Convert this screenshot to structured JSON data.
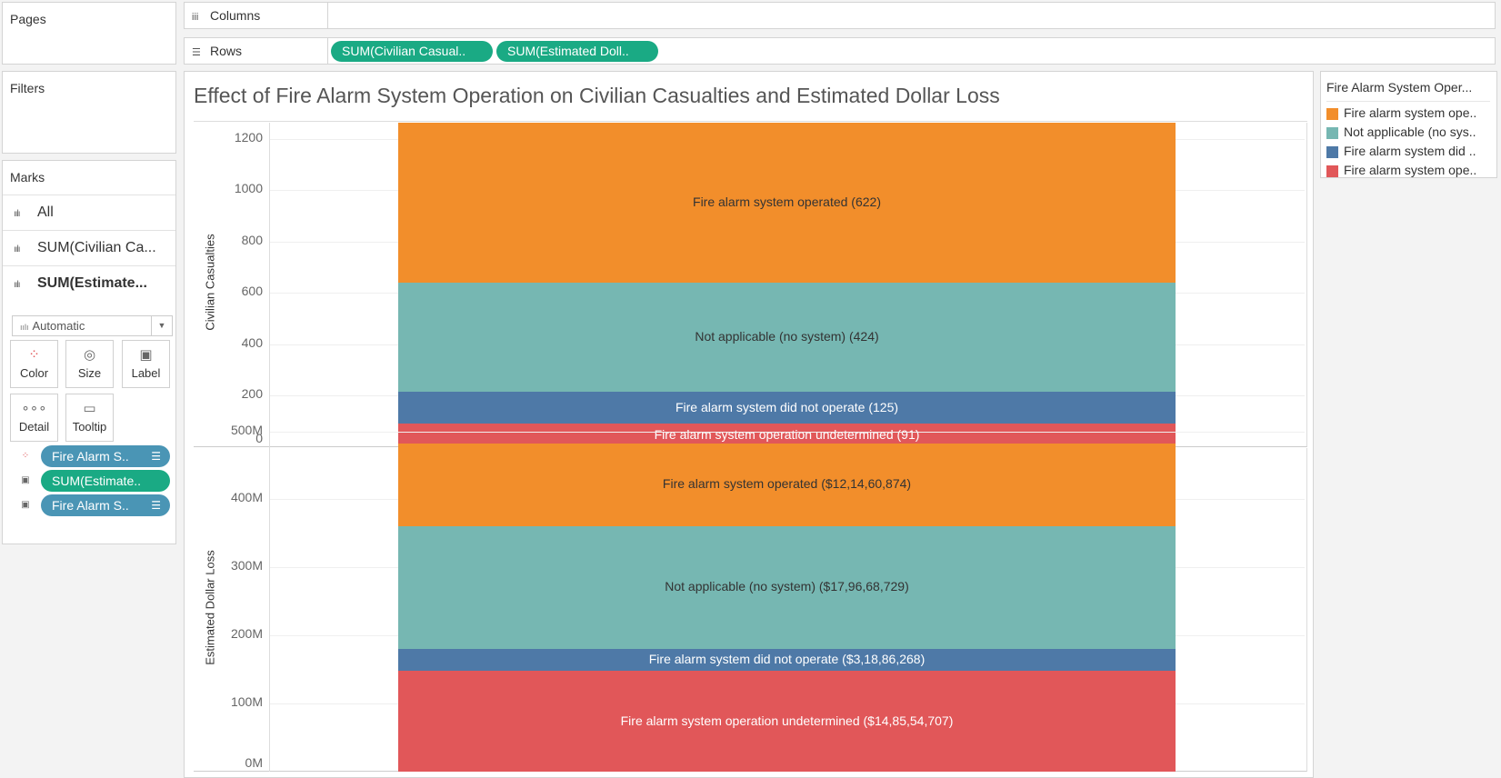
{
  "panels": {
    "pages": "Pages",
    "filters": "Filters",
    "marks": "Marks"
  },
  "shelves": {
    "columns_label": "Columns",
    "rows_label": "Rows",
    "row_pills": [
      "SUM(Civilian Casual..",
      "SUM(Estimated Doll.."
    ]
  },
  "marks_card": {
    "rows": [
      "All",
      "SUM(Civilian Ca...",
      "SUM(Estimate..."
    ],
    "mark_type": "Automatic",
    "buttons": [
      "Color",
      "Size",
      "Label",
      "Detail",
      "Tooltip"
    ],
    "pills": [
      "Fire Alarm S..",
      "SUM(Estimate..",
      "Fire Alarm S.."
    ]
  },
  "legend": {
    "title": "Fire Alarm System Oper...",
    "items": [
      {
        "label": "Fire alarm system ope..",
        "color": "#f28e2b"
      },
      {
        "label": "Not applicable (no sys..",
        "color": "#76b7b2"
      },
      {
        "label": "Fire alarm system did ..",
        "color": "#4e79a7"
      },
      {
        "label": "Fire alarm system ope..",
        "color": "#e15759"
      }
    ]
  },
  "chart_data": {
    "type": "bar",
    "title": "Effect of Fire Alarm System Operation on Civilian Casualties and Estimated Dollar Loss",
    "stacked": true,
    "panes": [
      {
        "ylabel": "Civilian Casualties",
        "ylim": [
          0,
          1262
        ],
        "yticks": [
          "1200",
          "1000",
          "800",
          "600",
          "400",
          "200",
          "0"
        ],
        "segments": [
          {
            "category": "Fire alarm system operation undetermined",
            "value": 91,
            "label": "Fire alarm system operation undetermined (91)",
            "color": "#e15759"
          },
          {
            "category": "Fire alarm system did not operate",
            "value": 125,
            "label": "Fire alarm system did not operate (125)",
            "color": "#4e79a7"
          },
          {
            "category": "Not applicable (no system)",
            "value": 424,
            "label": "Not applicable (no system) (424)",
            "color": "#76b7b2"
          },
          {
            "category": "Fire alarm system operated",
            "value": 622,
            "label": "Fire alarm system operated (622)",
            "color": "#f28e2b"
          }
        ]
      },
      {
        "ylabel": "Estimated Dollar Loss",
        "ylim": [
          0,
          475370578
        ],
        "yticks": [
          "500M",
          "400M",
          "300M",
          "200M",
          "100M",
          "0M"
        ],
        "segments": [
          {
            "category": "Fire alarm system operation undetermined",
            "value": 148554707,
            "label": "Fire alarm system operation undetermined ($14,85,54,707)",
            "color": "#e15759"
          },
          {
            "category": "Fire alarm system did not operate",
            "value": 31886268,
            "label": "Fire alarm system did not operate ($3,18,86,268)",
            "color": "#4e79a7"
          },
          {
            "category": "Not applicable (no system)",
            "value": 179668729,
            "label": "Not applicable (no system) ($17,96,68,729)",
            "color": "#76b7b2"
          },
          {
            "category": "Fire alarm system operated",
            "value": 121460874,
            "label": "Fire alarm system operated ($12,14,60,874)",
            "color": "#f28e2b"
          }
        ]
      }
    ]
  }
}
